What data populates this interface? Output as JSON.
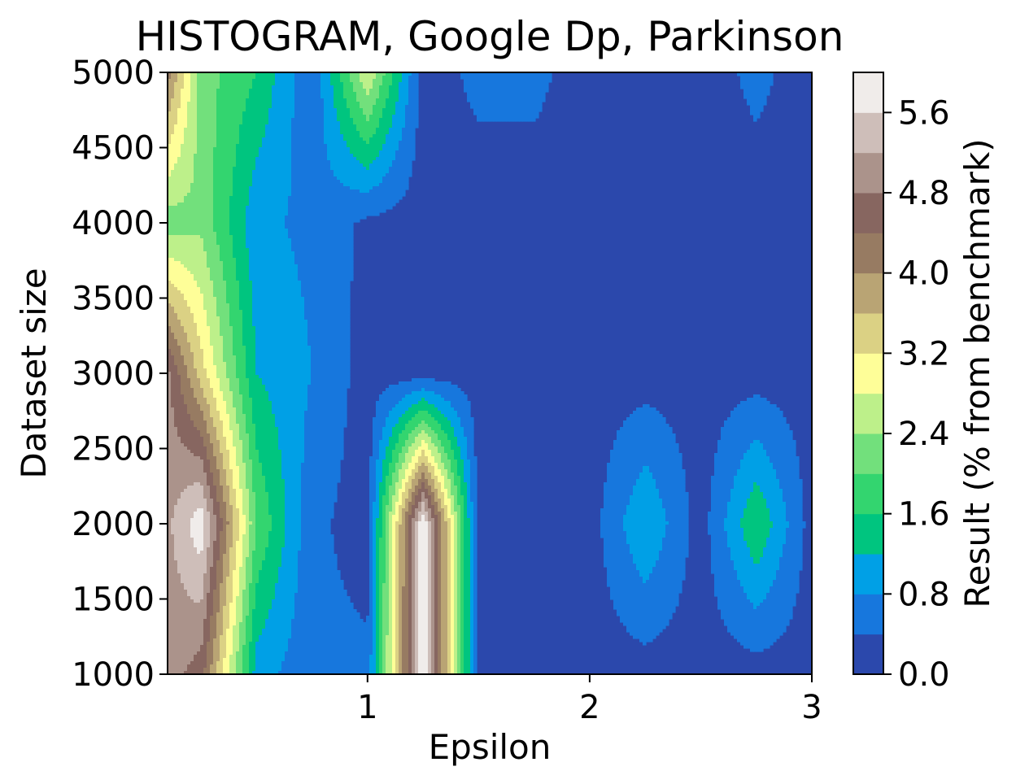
{
  "chart_data": {
    "type": "heatmap",
    "subtype": "filled-contour",
    "title": "HISTOGRAM, Google Dp, Parkinson",
    "xlabel": "Epsilon",
    "ylabel": "Dataset size",
    "colorbar_label": "Result (% from benchmark)",
    "xlim": [
      0.1,
      3.0
    ],
    "ylim": [
      1000,
      5000
    ],
    "x_ticks": [
      1,
      2,
      3
    ],
    "y_ticks": [
      1000,
      1500,
      2000,
      2500,
      3000,
      3500,
      4000,
      4500,
      5000
    ],
    "colorbar_ticks": [
      "0.0",
      "0.8",
      "1.6",
      "2.4",
      "3.2",
      "4.0",
      "4.8",
      "5.6"
    ],
    "levels": [
      0.0,
      0.4,
      0.8,
      1.2,
      1.6,
      2.0,
      2.4,
      2.8,
      3.2,
      3.6,
      4.0,
      4.4,
      4.8,
      5.2,
      5.6,
      6.0
    ],
    "colormap": "terrain",
    "level_colors": [
      "#2b48ac",
      "#1777dd",
      "#00a0e6",
      "#00c57f",
      "#33d56f",
      "#72e07c",
      "#bdf08a",
      "#fefe98",
      "#dbd184",
      "#b9a474",
      "#977b62",
      "#876660",
      "#ab938b",
      "#cebeb9",
      "#f0ecea"
    ],
    "x": [
      0.1,
      0.25,
      0.5,
      0.75,
      1.0,
      1.25,
      1.5,
      1.75,
      2.0,
      2.25,
      2.5,
      2.75,
      3.0
    ],
    "y": [
      1000,
      2000,
      3000,
      4000,
      5000
    ],
    "z": [
      [
        5.0,
        4.6,
        1.0,
        0.5,
        0.5,
        6.0,
        0.2,
        0.2,
        0.2,
        0.2,
        0.2,
        0.2,
        0.2
      ],
      [
        5.1,
        5.9,
        2.0,
        0.5,
        0.2,
        6.0,
        0.2,
        0.2,
        0.2,
        1.2,
        0.2,
        1.6,
        0.2
      ],
      [
        4.9,
        3.4,
        1.2,
        0.8,
        0.2,
        0.2,
        0.2,
        0.2,
        0.2,
        0.2,
        0.2,
        0.2,
        0.2
      ],
      [
        2.2,
        2.3,
        0.9,
        0.7,
        0.3,
        0.2,
        0.2,
        0.2,
        0.2,
        0.2,
        0.2,
        0.2,
        0.2
      ],
      [
        4.2,
        2.2,
        1.6,
        0.4,
        2.8,
        0.2,
        0.5,
        0.5,
        0.2,
        0.2,
        0.2,
        0.5,
        0.2
      ]
    ]
  }
}
